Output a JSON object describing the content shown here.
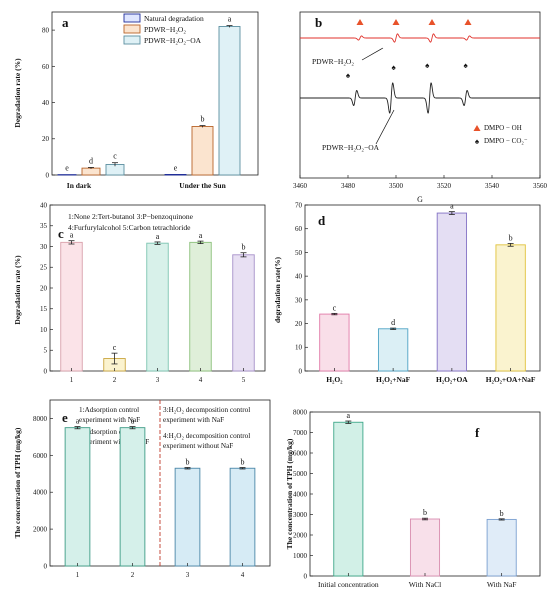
{
  "chart_data": [
    {
      "panel": "a",
      "type": "bar",
      "ylabel": "Degradation rate (%)",
      "xlabel": "",
      "ylim": [
        0,
        90
      ],
      "yticks": [
        "0",
        "20",
        "40",
        "60",
        "80"
      ],
      "categories": [
        "In dark",
        "Under the Sun"
      ],
      "legend_position": "top-right",
      "series": [
        {
          "name": "Natural degradation",
          "color": "#dfe6ff",
          "edge": "#1f2d99",
          "values": [
            0.2,
            0.3
          ],
          "errors": [
            0,
            0
          ],
          "letters": [
            "e",
            "e"
          ]
        },
        {
          "name": "PDWR−H₂O₂",
          "color": "#fbe4cf",
          "edge": "#b8642a",
          "values": [
            3.8,
            26.8
          ],
          "errors": [
            0.4,
            0.5
          ],
          "letters": [
            "d",
            "b"
          ]
        },
        {
          "name": "PDWR−H₂O₂−OA",
          "color": "#dff1f6",
          "edge": "#5b8fa0",
          "values": [
            5.8,
            82.0
          ],
          "errors": [
            1.0,
            0.5
          ],
          "letters": [
            "c",
            "a"
          ]
        }
      ]
    },
    {
      "panel": "b",
      "type": "line",
      "xlabel": "G",
      "ylabel": "",
      "xlim": [
        3460,
        3560
      ],
      "xticks": [
        "3460",
        "3480",
        "3500",
        "3520",
        "3540",
        "3560"
      ],
      "series": [
        {
          "name": "PDWR−H₂O₂",
          "color": "#e0322b",
          "lines": [
            {
              "center": 3485,
              "amp": 3
            },
            {
              "center": 3500,
              "amp": 6
            },
            {
              "center": 3515,
              "amp": 6
            },
            {
              "center": 3530,
              "amp": 3
            }
          ]
        },
        {
          "name": "PDWR−H₂O₂−OA",
          "color": "#222222",
          "lines": [
            {
              "center": 3483,
              "amp": 11
            },
            {
              "center": 3498,
              "amp": 22
            },
            {
              "center": 3514,
              "amp": 22
            },
            {
              "center": 3529,
              "amp": 11
            }
          ]
        }
      ],
      "markers": {
        "red": [
          3485,
          3500,
          3515,
          3530
        ],
        "black": [
          3480,
          3499,
          3513,
          3529
        ]
      },
      "legend": [
        {
          "symbol": "red-triangle",
          "label": "DMPO − OH"
        },
        {
          "symbol": "black-spade",
          "label": "DMPO − CO₂⁻"
        }
      ]
    },
    {
      "panel": "c",
      "type": "bar",
      "ylabel": "Degradation rate (%)",
      "xlabel": "",
      "ylim": [
        0,
        40
      ],
      "yticks": [
        "0",
        "5",
        "10",
        "15",
        "20",
        "25",
        "30",
        "35",
        "40"
      ],
      "categories": [
        "1",
        "2",
        "3",
        "4",
        "5"
      ],
      "values": [
        31.0,
        3.0,
        30.8,
        31.0,
        28.0
      ],
      "errors": [
        0.4,
        1.3,
        0.3,
        0.3,
        0.5
      ],
      "letters": [
        "a",
        "c",
        "a",
        "a",
        "b"
      ],
      "colors": [
        "#fbe3e8",
        "#fbf3cf",
        "#d8f1ea",
        "#dfefd9",
        "#e8e0f3"
      ],
      "edges": [
        "#d9a0ab",
        "#caa53e",
        "#7cc4b0",
        "#8cc07a",
        "#a690c9"
      ],
      "legend_lines": [
        "1:None  2:Tert-butanol  3:P−benzoquinone",
        "4:Furfurylalcohol  5:Carbon tetrachloride"
      ]
    },
    {
      "panel": "d",
      "type": "bar",
      "ylabel": "degradation rate(%)",
      "xlabel": "",
      "ylim": [
        0,
        70
      ],
      "yticks": [
        "0",
        "10",
        "20",
        "30",
        "40",
        "50",
        "60",
        "70"
      ],
      "categories": [
        "H₂O₂",
        "H₂O₂+NaF",
        "H₂O₂+OA",
        "H₂O₂+OA+NaF"
      ],
      "values": [
        24.0,
        17.8,
        66.6,
        53.2
      ],
      "errors": [
        0.3,
        0.3,
        0.6,
        0.6
      ],
      "letters": [
        "c",
        "d",
        "a",
        "b"
      ],
      "colors": [
        "#f9dfe9",
        "#dbeff5",
        "#e4def3",
        "#faf3cf"
      ],
      "edges": [
        "#e07aa8",
        "#4fa3c5",
        "#8372c4",
        "#e0c23a"
      ]
    },
    {
      "panel": "e",
      "type": "bar",
      "ylabel": "The concentration of TPH (mg/kg)",
      "xlabel": "",
      "ylim": [
        0,
        9000
      ],
      "yticks": [
        "0",
        "2000",
        "4000",
        "6000",
        "8000"
      ],
      "categories": [
        "1",
        "2",
        "3",
        "4"
      ],
      "values": [
        7500,
        7500,
        5300,
        5300
      ],
      "errors": [
        60,
        60,
        40,
        40
      ],
      "letters": [
        "a",
        "a",
        "b",
        "b"
      ],
      "colors": [
        "#d5f0ea",
        "#d5f0ea",
        "#d6ebf5",
        "#d6ebf5"
      ],
      "edges": [
        "#3e9c86",
        "#3e9c86",
        "#4a86a8",
        "#4a86a8"
      ],
      "annotations": {
        "left_top": [
          "1:Adsorption control",
          "experiment with NaF"
        ],
        "left_bottom": [
          "2:Adsorption control",
          "experiment without NaF"
        ],
        "right_top": [
          "3:H₂O₂ decomposition control",
          "experiment with NaF"
        ],
        "right_bottom": [
          "4:H₂O₂ decomposition control",
          "experiment without NaF"
        ]
      }
    },
    {
      "panel": "f",
      "type": "bar",
      "ylabel": "The concentration of TPH (mg/kg)",
      "xlabel": "",
      "ylim": [
        0,
        8000
      ],
      "yticks": [
        "0",
        "1000",
        "2000",
        "3000",
        "4000",
        "5000",
        "6000",
        "7000",
        "8000"
      ],
      "categories": [
        "Initial concentration",
        "With NaCl",
        "With NaF"
      ],
      "values": [
        7500,
        2780,
        2760
      ],
      "errors": [
        60,
        40,
        30
      ],
      "letters": [
        "a",
        "b",
        "b"
      ],
      "colors": [
        "#d2f0e7",
        "#f8e0ea",
        "#e0ecf8"
      ],
      "edges": [
        "#3da789",
        "#d88eb0",
        "#7a9fd0"
      ]
    }
  ]
}
